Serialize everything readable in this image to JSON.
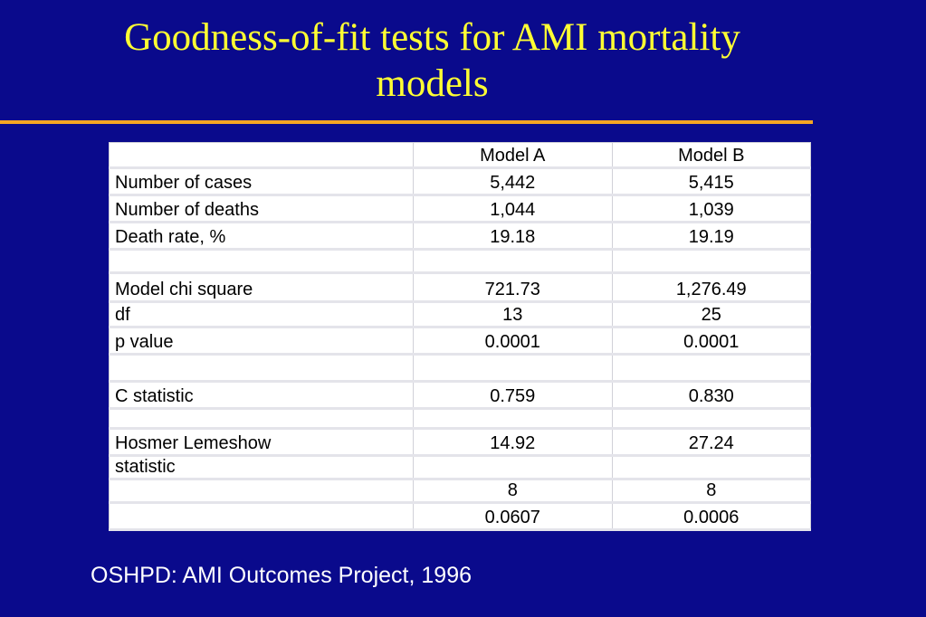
{
  "slide": {
    "title_line1": "Goodness-of-fit tests for AMI mortality",
    "title_line2": "models",
    "source": "OSHPD: AMI Outcomes Project, 1996",
    "colors": {
      "background": "#0a0a8c",
      "title": "#ffff33",
      "rule": "#f5a623",
      "source_text": "#ffffff"
    }
  },
  "table": {
    "headers": [
      "",
      "Model A",
      "Model B"
    ],
    "rows": [
      [
        "Number of cases",
        "5,442",
        "5,415"
      ],
      [
        "Number of deaths",
        "1,044",
        "1,039"
      ],
      [
        "Death rate, %",
        "19.18",
        "19.19"
      ],
      [
        "",
        "",
        ""
      ],
      [
        "Model chi square",
        "721.73",
        "1,276.49"
      ],
      [
        "df",
        "13",
        "25"
      ],
      [
        "p value",
        "0.0001",
        "0.0001"
      ],
      [
        "",
        "",
        ""
      ],
      [
        "C statistic",
        "0.759",
        "0.830"
      ],
      [
        "",
        "",
        ""
      ],
      [
        "Hosmer Lemeshow",
        "14.92",
        "27.24"
      ],
      [
        "statistic",
        "",
        ""
      ],
      [
        "",
        "8",
        "8"
      ],
      [
        "",
        "0.0607",
        "0.0006"
      ]
    ]
  }
}
